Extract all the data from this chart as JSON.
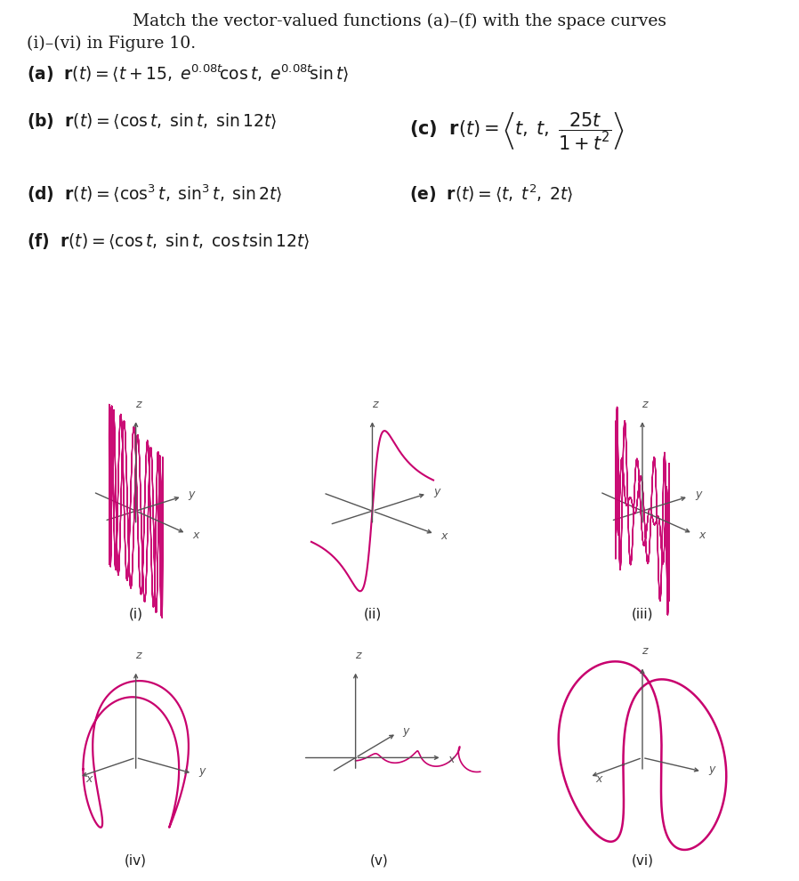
{
  "bg_color": "#ffffff",
  "curve_color": "#c8006e",
  "axis_color": "#555555",
  "text_color": "#1a1a1a",
  "labels": [
    "(i)",
    "(ii)",
    "(iii)",
    "(iv)",
    "(v)",
    "(vi)"
  ]
}
